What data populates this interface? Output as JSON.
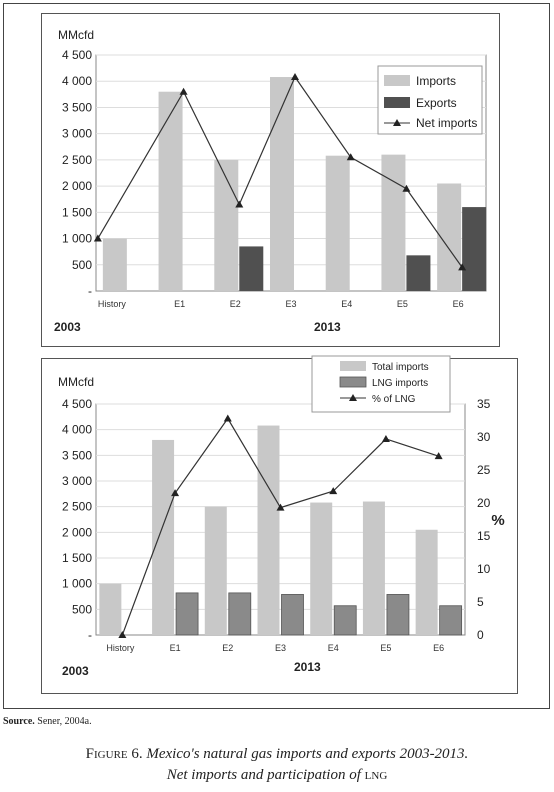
{
  "chart_data": [
    {
      "type": "bar",
      "ylabel": "MMcfd",
      "ylim": [
        0,
        4500
      ],
      "yticks": [
        "-",
        "500",
        "1 000",
        "1 500",
        "2 000",
        "2 500",
        "3 000",
        "3 500",
        "4 000",
        "4 500"
      ],
      "categories": [
        "History",
        "E1",
        "E2",
        "E3",
        "E4",
        "E5",
        "E6"
      ],
      "year_labels": [
        "2003",
        "2013"
      ],
      "legend_position": "top-right",
      "series": [
        {
          "name": "Imports",
          "kind": "bar",
          "color": "#c8c8c8",
          "values": [
            1000,
            3800,
            2500,
            4080,
            2580,
            2600,
            2050
          ]
        },
        {
          "name": "Exports",
          "kind": "bar",
          "color": "#505050",
          "values": [
            0,
            0,
            850,
            0,
            0,
            680,
            1600
          ]
        },
        {
          "name": "Net imports",
          "kind": "line",
          "color": "#333333",
          "values": [
            1000,
            3800,
            1650,
            4080,
            2550,
            1950,
            450
          ]
        }
      ]
    },
    {
      "type": "bar",
      "ylabel": "MMcfd",
      "y2label": "%",
      "ylim": [
        0,
        4500
      ],
      "y2lim": [
        0,
        35
      ],
      "yticks": [
        "-",
        "500",
        "1 000",
        "1 500",
        "2 000",
        "2 500",
        "3 000",
        "3 500",
        "4 000",
        "4 500"
      ],
      "y2ticks": [
        "0",
        "5",
        "10",
        "15",
        "20",
        "25",
        "30",
        "35"
      ],
      "categories": [
        "History",
        "E1",
        "E2",
        "E3",
        "E4",
        "E5",
        "E6"
      ],
      "year_labels": [
        "2003",
        "2013"
      ],
      "legend_position": "top-right",
      "series": [
        {
          "name": "Total imports",
          "kind": "bar",
          "color": "#c8c8c8",
          "axis": "left",
          "values": [
            1000,
            3800,
            2500,
            4080,
            2580,
            2600,
            2050
          ]
        },
        {
          "name": "LNG imports",
          "kind": "bar",
          "color": "#8a8a8a",
          "axis": "left",
          "values": [
            0,
            820,
            820,
            790,
            570,
            790,
            570
          ]
        },
        {
          "name": "% of LNG",
          "kind": "line",
          "color": "#333333",
          "axis": "right",
          "values": [
            0,
            21.5,
            32.8,
            19.3,
            21.8,
            29.7,
            27.1
          ]
        }
      ]
    }
  ],
  "source": {
    "label": "Source.",
    "text": "Sener, 2004a."
  },
  "caption": {
    "figure": "Figure 6.",
    "line1": "Mexico's natural gas imports and exports 2003-2013.",
    "line2_a": "Net imports and participation of",
    "line2_b": "lng"
  }
}
